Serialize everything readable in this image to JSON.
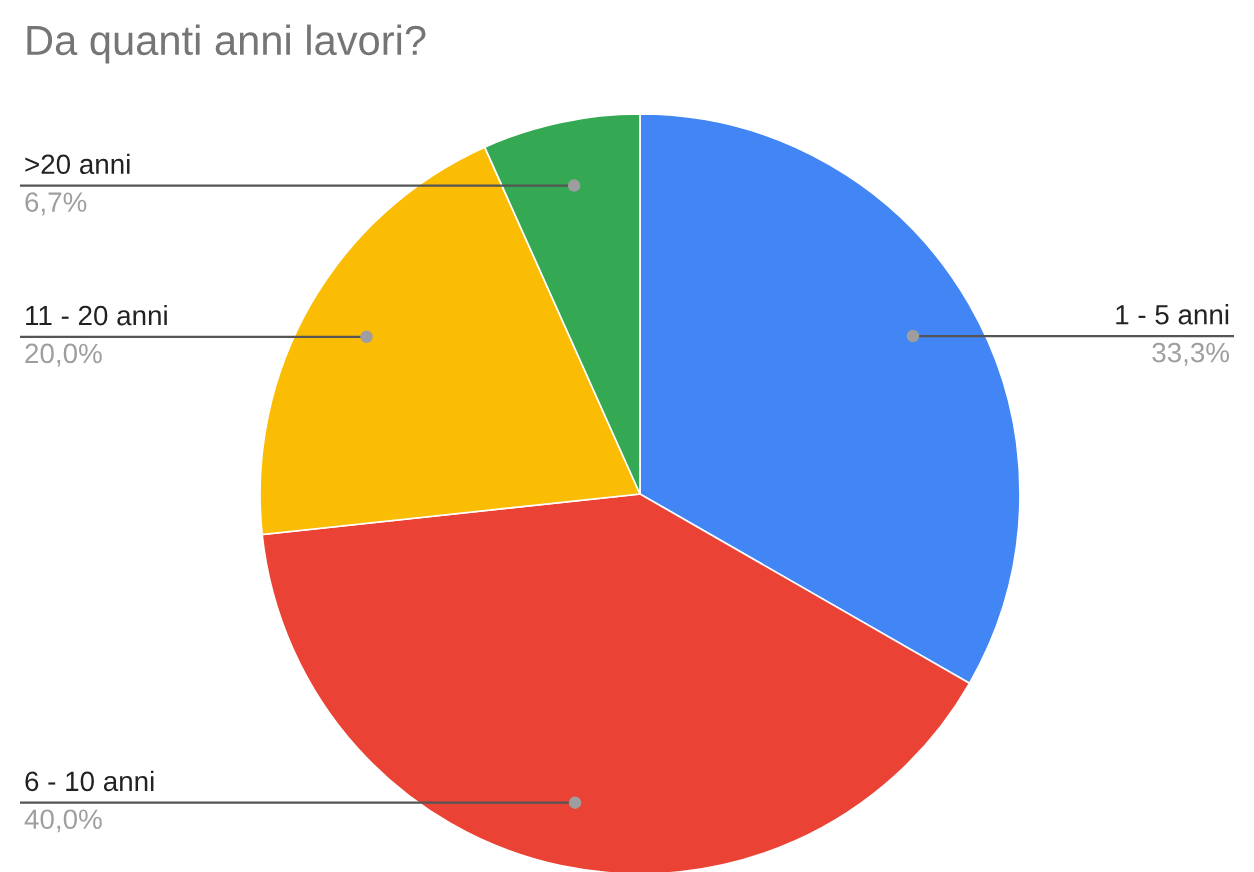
{
  "chart_data": {
    "type": "pie",
    "title": "Da quanti anni lavori?",
    "categories": [
      "1 - 5 anni",
      "6 - 10 anni",
      "11 - 20 anni",
      ">20 anni"
    ],
    "values": [
      33.3,
      40.0,
      20.0,
      6.7
    ],
    "value_labels": [
      "33,3%",
      "40,0%",
      "20,0%",
      "6,7%"
    ],
    "colors": [
      "#4285f4",
      "#ea4335",
      "#fbbc04",
      "#34a853"
    ],
    "legend": false
  }
}
